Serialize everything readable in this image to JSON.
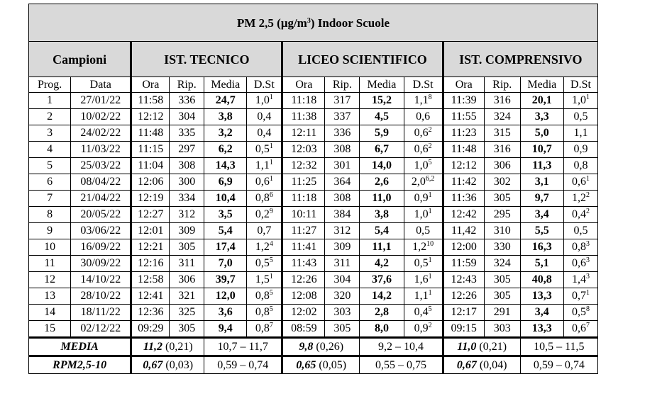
{
  "title_main": "PM 2,5 (μg/m",
  "title_sup": "3",
  "title_rest": ") Indoor Scuole",
  "group_campioni": "Campioni",
  "schools": [
    "IST. TECNICO",
    "LICEO SCIENTIFICO",
    "IST. COMPRENSIVO"
  ],
  "sub_prog": "Prog.",
  "sub_data": "Data",
  "sub_cols": [
    "Ora",
    "Rip.",
    "Media",
    "D.St"
  ],
  "rows": [
    {
      "prog": "1",
      "date": "27/01/22",
      "s": [
        {
          "ora": "11:58",
          "rip": "336",
          "media": "24,7",
          "dst": "1,0",
          "sup": "1"
        },
        {
          "ora": "11:18",
          "rip": "317",
          "media": "15,2",
          "dst": "1,1",
          "sup": "8"
        },
        {
          "ora": "11:39",
          "rip": "316",
          "media": "20,1",
          "dst": "1,0",
          "sup": "1"
        }
      ]
    },
    {
      "prog": "2",
      "date": "10/02/22",
      "s": [
        {
          "ora": "12:12",
          "rip": "304",
          "media": "3,8",
          "dst": "0,4",
          "sup": ""
        },
        {
          "ora": "11:38",
          "rip": "337",
          "media": "4,5",
          "dst": "0,6",
          "sup": ""
        },
        {
          "ora": "11:55",
          "rip": "324",
          "media": "3,3",
          "dst": "0,5",
          "sup": ""
        }
      ]
    },
    {
      "prog": "3",
      "date": "24/02/22",
      "s": [
        {
          "ora": "11:48",
          "rip": "335",
          "media": "3,2",
          "dst": "0,4",
          "sup": ""
        },
        {
          "ora": "12:11",
          "rip": "336",
          "media": "5,9",
          "dst": "0,6",
          "sup": "2"
        },
        {
          "ora": "11:23",
          "rip": "315",
          "media": "5,0",
          "dst": "1,1",
          "sup": ""
        }
      ]
    },
    {
      "prog": "4",
      "date": "11/03/22",
      "s": [
        {
          "ora": "11:15",
          "rip": "297",
          "media": "6,2",
          "dst": "0,5",
          "sup": "1"
        },
        {
          "ora": "12:03",
          "rip": "308",
          "media": "6,7",
          "dst": "0,6",
          "sup": "2"
        },
        {
          "ora": "11:48",
          "rip": "316",
          "media": "10,7",
          "dst": "0,9",
          "sup": ""
        }
      ]
    },
    {
      "prog": "5",
      "date": "25/03/22",
      "s": [
        {
          "ora": "11:04",
          "rip": "308",
          "media": "14,3",
          "dst": "1,1",
          "sup": "1"
        },
        {
          "ora": "12:32",
          "rip": "301",
          "media": "14,0",
          "dst": "1,0",
          "sup": "5"
        },
        {
          "ora": "12:12",
          "rip": "306",
          "media": "11,3",
          "dst": "0,8",
          "sup": ""
        }
      ]
    },
    {
      "prog": "6",
      "date": "08/04/22",
      "s": [
        {
          "ora": "12:06",
          "rip": "300",
          "media": "6,9",
          "dst": "0,6",
          "sup": "1"
        },
        {
          "ora": "11:25",
          "rip": "364",
          "media": "2,6",
          "dst": "2,0",
          "sup": "6,2"
        },
        {
          "ora": "11:42",
          "rip": "302",
          "media": "3,1",
          "dst": "0,6",
          "sup": "1"
        }
      ]
    },
    {
      "prog": "7",
      "date": "21/04/22",
      "s": [
        {
          "ora": "12:19",
          "rip": "334",
          "media": "10,4",
          "dst": "0,8",
          "sup": "6"
        },
        {
          "ora": "11:18",
          "rip": "308",
          "media": "11,0",
          "dst": "0,9",
          "sup": "1"
        },
        {
          "ora": "11:36",
          "rip": "305",
          "media": "9,7",
          "dst": "1,2",
          "sup": "2"
        }
      ]
    },
    {
      "prog": "8",
      "date": "20/05/22",
      "s": [
        {
          "ora": "12:27",
          "rip": "312",
          "media": "3,5",
          "dst": "0,2",
          "sup": "9"
        },
        {
          "ora": "10:11",
          "rip": "384",
          "media": "3,8",
          "dst": "1,0",
          "sup": "1"
        },
        {
          "ora": "12:42",
          "rip": "295",
          "media": "3,4",
          "dst": "0,4",
          "sup": "2"
        }
      ]
    },
    {
      "prog": "9",
      "date": "03/06/22",
      "s": [
        {
          "ora": "12:01",
          "rip": "309",
          "media": "5,4",
          "dst": "0,7",
          "sup": ""
        },
        {
          "ora": "11:27",
          "rip": "312",
          "media": "5,4",
          "dst": "0,5",
          "sup": ""
        },
        {
          "ora": "11,42",
          "rip": "310",
          "media": "5,5",
          "dst": "0,5",
          "sup": ""
        }
      ]
    },
    {
      "prog": "10",
      "date": "16/09/22",
      "s": [
        {
          "ora": "12:21",
          "rip": "305",
          "media": "17,4",
          "dst": "1,2",
          "sup": "4"
        },
        {
          "ora": "11:41",
          "rip": "309",
          "media": "11,1",
          "dst": "1,2",
          "sup": "10"
        },
        {
          "ora": "12:00",
          "rip": "330",
          "media": "16,3",
          "dst": "0,8",
          "sup": "3"
        }
      ]
    },
    {
      "prog": "11",
      "date": "30/09/22",
      "s": [
        {
          "ora": "12:16",
          "rip": "311",
          "media": "7,0",
          "dst": "0,5",
          "sup": "5"
        },
        {
          "ora": "11:43",
          "rip": "311",
          "media": "4,2",
          "dst": "0,5",
          "sup": "1"
        },
        {
          "ora": "11:59",
          "rip": "324",
          "media": "5,1",
          "dst": "0,6",
          "sup": "3"
        }
      ]
    },
    {
      "prog": "12",
      "date": "14/10/22",
      "s": [
        {
          "ora": "12:58",
          "rip": "306",
          "media": "39,7",
          "dst": "1,5",
          "sup": "1"
        },
        {
          "ora": "12:26",
          "rip": "304",
          "media": "37,6",
          "dst": "1,6",
          "sup": "1"
        },
        {
          "ora": "12:43",
          "rip": "305",
          "media": "40,8",
          "dst": "1,4",
          "sup": "3"
        }
      ]
    },
    {
      "prog": "13",
      "date": "28/10/22",
      "s": [
        {
          "ora": "12:41",
          "rip": "321",
          "media": "12,0",
          "dst": "0,8",
          "sup": "5"
        },
        {
          "ora": "12:08",
          "rip": "320",
          "media": "14,2",
          "dst": "1,1",
          "sup": "1"
        },
        {
          "ora": "12:26",
          "rip": "305",
          "media": "13,3",
          "dst": "0,7",
          "sup": "1"
        }
      ]
    },
    {
      "prog": "14",
      "date": "18/11/22",
      "s": [
        {
          "ora": "12:36",
          "rip": "325",
          "media": "3,6",
          "dst": "0,8",
          "sup": "5"
        },
        {
          "ora": "12:02",
          "rip": "303",
          "media": "2,8",
          "dst": "0,4",
          "sup": "5"
        },
        {
          "ora": "12:17",
          "rip": "291",
          "media": "3,4",
          "dst": "0,5",
          "sup": "8"
        }
      ]
    },
    {
      "prog": "15",
      "date": "02/12/22",
      "s": [
        {
          "ora": "09:29",
          "rip": "305",
          "media": "9,4",
          "dst": "0,8",
          "sup": "7"
        },
        {
          "ora": "08:59",
          "rip": "305",
          "media": "8,0",
          "dst": "0,9",
          "sup": "2"
        },
        {
          "ora": "09:15",
          "rip": "303",
          "media": "13,3",
          "dst": "0,6",
          "sup": "7"
        }
      ]
    }
  ],
  "footer": [
    {
      "label": "MEDIA",
      "s": [
        {
          "val": "11,2",
          "par": " (0,21)",
          "range": "10,7 – 11,7"
        },
        {
          "val": "9,8",
          "par": " (0,26)",
          "range": "9,2 – 10,4"
        },
        {
          "val": "11,0",
          "par": " (0,21)",
          "range": "10,5 – 11,5"
        }
      ]
    },
    {
      "label": "RPM2,5-10",
      "s": [
        {
          "val": "0,67",
          "par": " (0,03)",
          "range": "0,59 – 0,74"
        },
        {
          "val": "0,65",
          "par": " (0,05)",
          "range": "0,55 – 0,75"
        },
        {
          "val": "0,67",
          "par": " (0,04)",
          "range": "0,59 – 0,74"
        }
      ]
    }
  ]
}
